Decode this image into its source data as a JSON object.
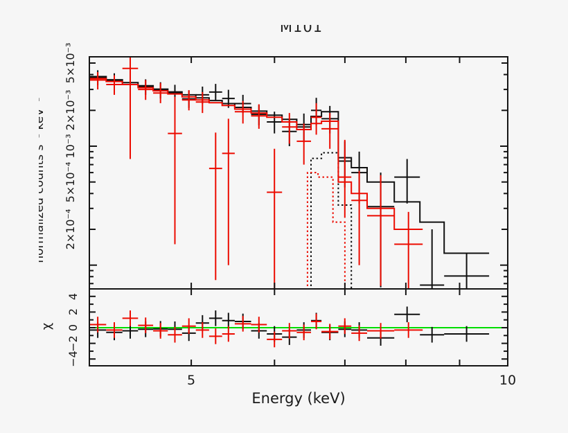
{
  "figure": {
    "background_color": "#f6f6f6",
    "frame_color": "#151515"
  },
  "chart_data": {
    "type": "line",
    "subtype": "xspec-counts-spectrum-with-chi-residuals",
    "title": "M101",
    "title_note": "title partially cut off at top in source image",
    "xlabel": "Energy (keV)",
    "ylabel": "normalized counts s⁻¹ keV⁻¹",
    "ylabel_note": "rotated y-axis label mostly clipped off left edge; only glyph fragments visible",
    "ylabel_residuals": "χ",
    "x_scale": "log",
    "x_range": [
      4.0,
      10.0
    ],
    "y_scale": "log",
    "y_range": [
      6.3e-05,
      0.0058
    ],
    "residual_range": [
      -4.9,
      4.9
    ],
    "grid": false,
    "legend": false,
    "x_ticks": [
      5,
      6,
      7,
      8,
      9,
      10
    ],
    "x_tick_labels": [
      {
        "value": 5,
        "label": "5"
      },
      {
        "value": 10,
        "label": "10"
      }
    ],
    "y_tick_labels": [
      {
        "value": 0.005,
        "label": "5×10⁻³"
      },
      {
        "value": 0.002,
        "label": "2×10⁻³"
      },
      {
        "value": 0.001,
        "label": "10⁻³"
      },
      {
        "value": 0.0005,
        "label": "5×10⁻⁴"
      },
      {
        "value": 0.0002,
        "label": "2×10⁻⁴"
      }
    ],
    "residual_tick_labels": [
      {
        "value": 4,
        "label": "4"
      },
      {
        "value": 2,
        "label": "2"
      },
      {
        "value": 0,
        "label": "0"
      },
      {
        "value": -2,
        "label": "−2"
      },
      {
        "value": -4,
        "label": "−4"
      }
    ],
    "zero_line_color": "#00dd00",
    "colors": {
      "dataset1": "#111111",
      "dataset2": "#ec0b00"
    },
    "series": [
      {
        "name": "dataset-1-data",
        "role": "data",
        "color": "#111111",
        "bins": [
          [
            4.0,
            4.15,
            0.0038,
            0.00325,
            0.00435
          ],
          [
            4.15,
            4.3,
            0.00355,
            0.00305,
            0.0041
          ],
          [
            4.3,
            4.45,
            0.0033,
            0.00282,
            0.00382
          ],
          [
            4.45,
            4.6,
            0.00315,
            0.0027,
            0.00365
          ],
          [
            4.6,
            4.75,
            0.00296,
            0.00252,
            0.00345
          ],
          [
            4.75,
            4.9,
            0.0028,
            0.00238,
            0.00328
          ],
          [
            4.9,
            5.05,
            0.0025,
            0.0021,
            0.00295
          ],
          [
            5.05,
            5.2,
            0.0027,
            0.00228,
            0.00317
          ],
          [
            5.2,
            5.35,
            0.00285,
            0.0024,
            0.00334
          ],
          [
            5.35,
            5.5,
            0.00252,
            0.0021,
            0.00298
          ],
          [
            5.5,
            5.7,
            0.00228,
            0.0019,
            0.0027
          ],
          [
            5.7,
            5.9,
            0.00185,
            0.0015,
            0.00222
          ],
          [
            5.9,
            6.1,
            0.0016,
            0.00128,
            0.00195
          ],
          [
            6.1,
            6.3,
            0.00133,
            0.001,
            0.0017
          ],
          [
            6.3,
            6.5,
            0.00145,
            0.00108,
            0.00188
          ],
          [
            6.5,
            6.65,
            0.002,
            0.0015,
            0.00255
          ],
          [
            6.65,
            6.9,
            0.0017,
            0.00128,
            0.00218
          ],
          [
            6.9,
            7.1,
            0.00075,
            0.00045,
            0.0011
          ],
          [
            7.1,
            7.35,
            0.0006,
            0.00033,
            0.0009
          ],
          [
            7.35,
            7.8,
            0.00031,
            6.5e-05,
            0.0006
          ],
          [
            7.8,
            8.25,
            0.00055,
            0.00033,
            0.00078
          ],
          [
            8.25,
            8.7,
            6.8e-05,
            6.4e-05,
            0.0002
          ],
          [
            8.7,
            9.6,
            8.1e-05,
            4.5e-05,
            0.000125
          ]
        ]
      },
      {
        "name": "dataset-1-model",
        "role": "model",
        "color": "#111111",
        "steps": [
          [
            4.0,
            4.15,
            0.00385
          ],
          [
            4.15,
            4.3,
            0.00362
          ],
          [
            4.3,
            4.45,
            0.00342
          ],
          [
            4.45,
            4.6,
            0.00322
          ],
          [
            4.6,
            4.75,
            0.00302
          ],
          [
            4.75,
            4.9,
            0.00286
          ],
          [
            4.9,
            5.05,
            0.0027
          ],
          [
            5.05,
            5.2,
            0.00255
          ],
          [
            5.2,
            5.35,
            0.00242
          ],
          [
            5.35,
            5.5,
            0.00228
          ],
          [
            5.5,
            5.7,
            0.00212
          ],
          [
            5.7,
            5.9,
            0.00197
          ],
          [
            5.9,
            6.1,
            0.00182
          ],
          [
            6.1,
            6.3,
            0.00168
          ],
          [
            6.3,
            6.5,
            0.00152
          ],
          [
            6.5,
            6.65,
            0.00178
          ],
          [
            6.65,
            6.9,
            0.00195
          ],
          [
            6.9,
            7.1,
            0.0008
          ],
          [
            7.1,
            7.35,
            0.00066
          ],
          [
            7.35,
            7.8,
            0.0005
          ],
          [
            7.8,
            8.25,
            0.00034
          ],
          [
            8.25,
            8.7,
            0.00023
          ],
          [
            8.7,
            9.6,
            0.000126
          ]
        ]
      },
      {
        "name": "dataset-1-gaussian-component",
        "role": "component",
        "style": "dotted",
        "color": "#111111",
        "steps": [
          [
            6.5,
            6.65,
            0.00079
          ],
          [
            6.65,
            6.9,
            0.00088
          ],
          [
            6.9,
            7.1,
            0.00032
          ]
        ]
      },
      {
        "name": "dataset-2-data",
        "role": "data",
        "color": "#ec0b00",
        "bins": [
          [
            4.0,
            4.15,
            0.0036,
            0.003,
            0.0042
          ],
          [
            4.15,
            4.3,
            0.0033,
            0.0027,
            0.00395
          ],
          [
            4.3,
            4.45,
            0.0045,
            0.00078,
            0.0057
          ],
          [
            4.45,
            4.6,
            0.003,
            0.00245,
            0.0036
          ],
          [
            4.6,
            4.75,
            0.0028,
            0.0023,
            0.0034
          ],
          [
            4.75,
            4.9,
            0.00128,
            0.00015,
            0.0026
          ],
          [
            4.9,
            5.05,
            0.00245,
            0.002,
            0.00295
          ],
          [
            5.05,
            5.2,
            0.00235,
            0.0019,
            0.00285
          ],
          [
            5.2,
            5.35,
            0.00065,
            7.5e-05,
            0.0013
          ],
          [
            5.35,
            5.5,
            0.00087,
            0.0001,
            0.0017
          ],
          [
            5.5,
            5.7,
            0.00195,
            0.00155,
            0.0024
          ],
          [
            5.7,
            5.9,
            0.0018,
            0.0014,
            0.00225
          ],
          [
            5.9,
            6.1,
            0.00041,
            6.4e-05,
            0.00095
          ],
          [
            6.1,
            6.3,
            0.00145,
            0.00105,
            0.0019
          ],
          [
            6.3,
            6.5,
            0.0011,
            0.0007,
            0.00155
          ],
          [
            6.5,
            6.65,
            0.00175,
            0.00125,
            0.0023
          ],
          [
            6.65,
            6.9,
            0.0014,
            0.00095,
            0.0019
          ],
          [
            6.9,
            7.1,
            0.00055,
            0.00025,
            0.00113
          ],
          [
            7.1,
            7.35,
            0.00035,
            0.0001,
            0.00062
          ],
          [
            7.35,
            7.8,
            0.00026,
            6.7e-05,
            0.00057
          ],
          [
            7.8,
            8.3,
            0.00015,
            6.4e-05,
            0.00028
          ]
        ]
      },
      {
        "name": "dataset-2-model",
        "role": "model",
        "color": "#ec0b00",
        "steps": [
          [
            4.0,
            4.15,
            0.0037
          ],
          [
            4.15,
            4.3,
            0.0035
          ],
          [
            4.3,
            4.45,
            0.0033
          ],
          [
            4.45,
            4.6,
            0.0031
          ],
          [
            4.6,
            4.75,
            0.00292
          ],
          [
            4.75,
            4.9,
            0.00275
          ],
          [
            4.9,
            5.05,
            0.0026
          ],
          [
            5.05,
            5.2,
            0.00245
          ],
          [
            5.2,
            5.35,
            0.00232
          ],
          [
            5.35,
            5.5,
            0.0022
          ],
          [
            5.5,
            5.7,
            0.00205
          ],
          [
            5.7,
            5.9,
            0.0019
          ],
          [
            5.9,
            6.1,
            0.00175
          ],
          [
            6.1,
            6.3,
            0.0016
          ],
          [
            6.3,
            6.5,
            0.00138
          ],
          [
            6.5,
            6.65,
            0.00155
          ],
          [
            6.65,
            6.9,
            0.00162
          ],
          [
            6.9,
            7.1,
            0.0005
          ],
          [
            7.1,
            7.35,
            0.0004
          ],
          [
            7.35,
            7.8,
            0.0003
          ],
          [
            7.8,
            8.3,
            0.0002
          ]
        ]
      },
      {
        "name": "dataset-2-gaussian-component",
        "role": "component",
        "style": "dotted",
        "color": "#ec0b00",
        "steps": [
          [
            6.45,
            6.6,
            0.0006
          ],
          [
            6.6,
            6.82,
            0.00055
          ],
          [
            6.82,
            7.0,
            0.00023
          ]
        ]
      }
    ],
    "residuals": [
      {
        "name": "dataset-1-residuals",
        "color": "#111111",
        "error": 1.0,
        "bins": [
          [
            4.0,
            4.15,
            -0.3
          ],
          [
            4.15,
            4.3,
            -0.6
          ],
          [
            4.3,
            4.45,
            -0.4
          ],
          [
            4.45,
            4.6,
            -0.2
          ],
          [
            4.6,
            4.75,
            -0.15
          ],
          [
            4.75,
            4.9,
            -0.2
          ],
          [
            4.9,
            5.05,
            -0.7
          ],
          [
            5.05,
            5.2,
            0.6
          ],
          [
            5.2,
            5.35,
            1.2
          ],
          [
            5.35,
            5.5,
            0.9
          ],
          [
            5.5,
            5.7,
            0.8
          ],
          [
            5.7,
            5.9,
            -0.4
          ],
          [
            5.9,
            6.1,
            -0.8
          ],
          [
            6.1,
            6.3,
            -1.2
          ],
          [
            6.3,
            6.5,
            -0.3
          ],
          [
            6.5,
            6.65,
            0.9
          ],
          [
            6.65,
            6.9,
            -0.6
          ],
          [
            6.9,
            7.1,
            -0.2
          ],
          [
            7.1,
            7.35,
            -0.3
          ],
          [
            7.35,
            7.8,
            -1.3
          ],
          [
            7.8,
            8.25,
            1.7
          ],
          [
            8.25,
            8.7,
            -0.9
          ],
          [
            8.7,
            9.6,
            -0.8
          ]
        ]
      },
      {
        "name": "dataset-2-residuals",
        "color": "#ec0b00",
        "error": 1.0,
        "bins": [
          [
            4.0,
            4.15,
            0.4
          ],
          [
            4.15,
            4.3,
            -0.3
          ],
          [
            4.3,
            4.45,
            1.2
          ],
          [
            4.45,
            4.6,
            0.3
          ],
          [
            4.6,
            4.75,
            -0.4
          ],
          [
            4.75,
            4.9,
            -0.9
          ],
          [
            4.9,
            5.05,
            0.2
          ],
          [
            5.05,
            5.2,
            -0.3
          ],
          [
            5.2,
            5.35,
            -1.1
          ],
          [
            5.35,
            5.5,
            -0.8
          ],
          [
            5.5,
            5.7,
            0.5
          ],
          [
            5.7,
            5.9,
            0.4
          ],
          [
            5.9,
            6.1,
            -1.5
          ],
          [
            6.1,
            6.3,
            -0.4
          ],
          [
            6.3,
            6.5,
            -0.6
          ],
          [
            6.5,
            6.65,
            0.8
          ],
          [
            6.65,
            6.9,
            -0.5
          ],
          [
            6.9,
            7.1,
            0.2
          ],
          [
            7.1,
            7.35,
            -0.7
          ],
          [
            7.35,
            7.8,
            -0.4
          ],
          [
            7.8,
            8.3,
            -0.3
          ]
        ]
      }
    ]
  }
}
